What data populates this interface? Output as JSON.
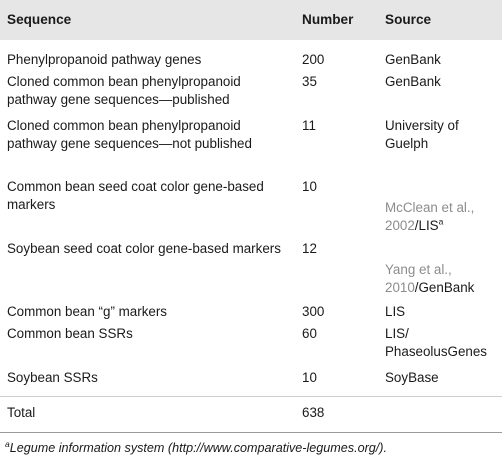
{
  "table": {
    "headers": {
      "sequence": "Sequence",
      "number": "Number",
      "source": "Source"
    },
    "rows": [
      {
        "sequence": "Phenylpropanoid pathway genes",
        "number": "200",
        "source": "GenBank"
      },
      {
        "sequence": "Cloned common bean phenylpropanoid pathway gene sequences—published",
        "number": "35",
        "source": "GenBank"
      },
      {
        "sequence": "Cloned common bean phenylpropanoid pathway gene sequences—not published",
        "number": "11",
        "source": "University of Guelph"
      },
      {
        "sequence": "Common bean seed coat color gene-based markers",
        "number": "10",
        "source_grey": "McClean et al., 2002",
        "source_dark": "/LIS",
        "source_sup": "a"
      },
      {
        "sequence": "Soybean seed coat color gene-based markers",
        "number": "12",
        "source_grey": "Yang et al., 2010",
        "source_dark": "/GenBank"
      },
      {
        "sequence": "Common bean “g” markers",
        "number": "300",
        "source": "LIS"
      },
      {
        "sequence": "Common bean SSRs",
        "number": "60",
        "source": "LIS/ PhaseolusGenes"
      },
      {
        "sequence": "Soybean SSRs",
        "number": "10",
        "source": "SoyBase"
      }
    ],
    "total": {
      "label": "Total",
      "number": "638"
    }
  },
  "footnote": {
    "marker": "a",
    "text": "Legume information system (http://www.comparative-legumes.org/)."
  }
}
